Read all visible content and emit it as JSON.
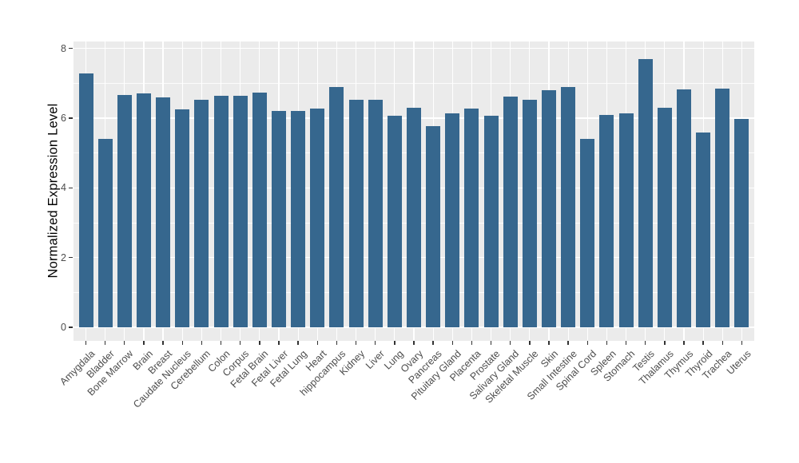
{
  "figure": {
    "title": "",
    "y_axis_title": "Normalized Expression Level"
  },
  "chart_data": {
    "type": "bar",
    "title": "",
    "xlabel": "",
    "ylabel": "Normalized Expression Level",
    "categories": [
      "Amygdala",
      "Bladder",
      "Bone Marrow",
      "Brain",
      "Breast",
      "Caudate Nucleus",
      "Cerebellum",
      "Colon",
      "Corpus",
      "Fetal Brain",
      "Fetal Liver",
      "Fetal Lung",
      "Heart",
      "hippocampus",
      "Kidney",
      "Liver",
      "Lung",
      "Ovary",
      "Pancreas",
      "Pituitary Gland",
      "Placenta",
      "Prostate",
      "Salivary Gland",
      "Skeletal Muscle",
      "Skin",
      "Small Intestine",
      "Spinal Cord",
      "Spleen",
      "Stomach",
      "Testis",
      "Thalamus",
      "Thymus",
      "Thyroid",
      "Trachea",
      "Uterus"
    ],
    "values": [
      7.28,
      5.4,
      6.67,
      6.72,
      6.59,
      6.26,
      6.54,
      6.64,
      6.64,
      6.74,
      6.2,
      6.22,
      6.28,
      6.9,
      6.52,
      6.52,
      6.06,
      6.29,
      5.78,
      6.13,
      6.28,
      6.08,
      6.61,
      6.54,
      6.8,
      6.9,
      5.41,
      6.09,
      6.15,
      7.7,
      6.29,
      6.83,
      5.6,
      6.85,
      5.99
    ],
    "ylim": [
      0,
      8
    ],
    "yticks": [
      0,
      2,
      4,
      6,
      8
    ],
    "minor_gridlines": [
      1,
      3,
      5,
      7
    ],
    "grid": "on",
    "legend": "none",
    "style": "ggplot-gray-panel",
    "colors": {
      "bar": "#36678E",
      "panel_bg": "#EBEBEB",
      "gridline": "#FFFFFF",
      "axis_text": "#4D4D4D",
      "axis_title": "#000000",
      "tick_mark": "#333333",
      "page_bg": "#FFFFFF"
    }
  }
}
